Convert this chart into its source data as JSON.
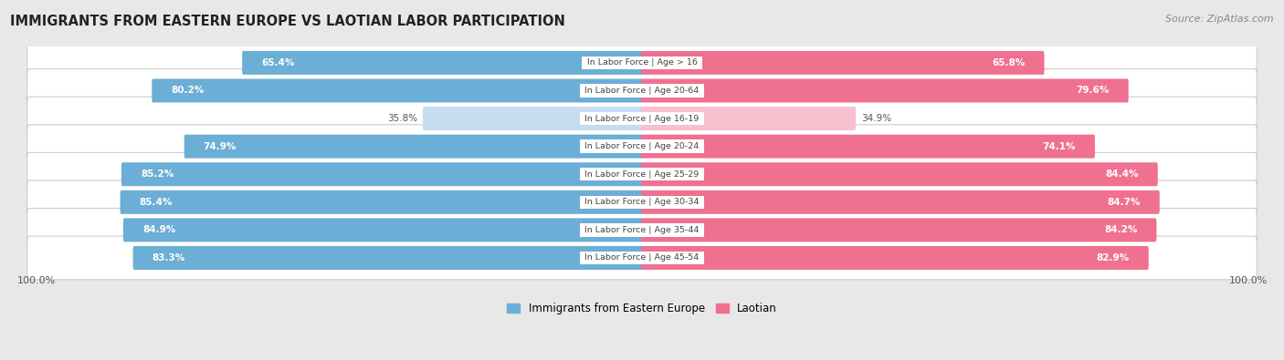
{
  "title": "IMMIGRANTS FROM EASTERN EUROPE VS LAOTIAN LABOR PARTICIPATION",
  "source": "Source: ZipAtlas.com",
  "categories": [
    "In Labor Force | Age > 16",
    "In Labor Force | Age 20-64",
    "In Labor Force | Age 16-19",
    "In Labor Force | Age 20-24",
    "In Labor Force | Age 25-29",
    "In Labor Force | Age 30-34",
    "In Labor Force | Age 35-44",
    "In Labor Force | Age 45-54"
  ],
  "left_values": [
    65.4,
    80.2,
    35.8,
    74.9,
    85.2,
    85.4,
    84.9,
    83.3
  ],
  "right_values": [
    65.8,
    79.6,
    34.9,
    74.1,
    84.4,
    84.7,
    84.2,
    82.9
  ],
  "left_label": "Immigrants from Eastern Europe",
  "right_label": "Laotian",
  "left_color": "#6baed6",
  "right_color": "#f07090",
  "left_light_color": "#c6dcf0",
  "right_light_color": "#f9c0d0",
  "max_value": 100.0,
  "bg_color": "#e8e8e8",
  "row_bg": "#f2f2f2",
  "value_color_dark": "#ffffff",
  "value_color_light": "#555555"
}
